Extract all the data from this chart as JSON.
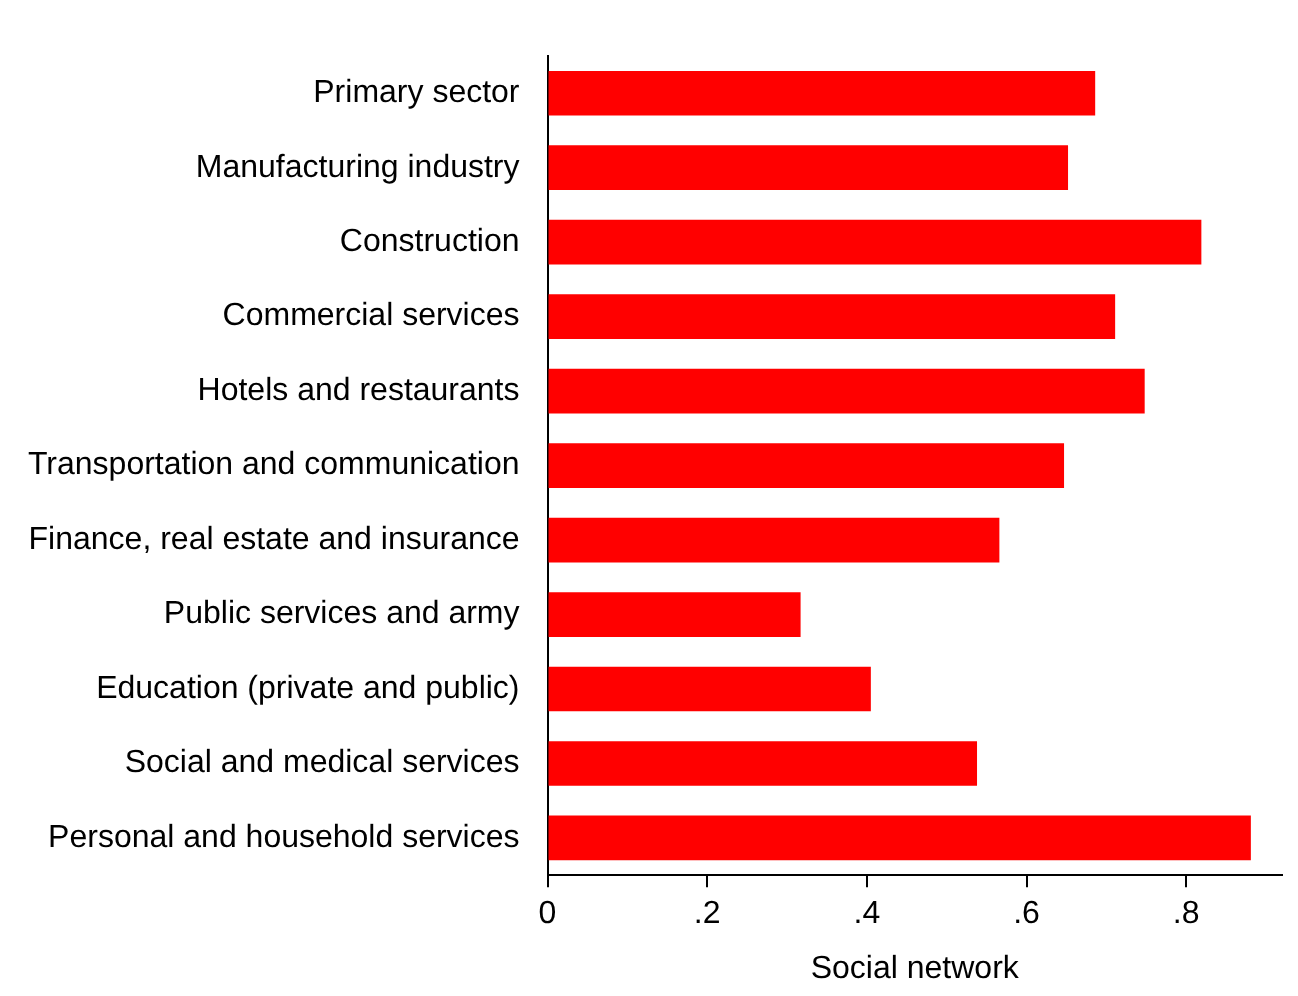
{
  "chart_data": {
    "type": "bar",
    "orientation": "horizontal",
    "xlabel": "Social network",
    "categories": [
      "Primary sector",
      "Manufacturing industry",
      "Construction",
      "Commercial services",
      "Hotels and restaurants",
      "Transportation and communication",
      "Finance, real estate and insurance",
      "Public services and army",
      "Education (private and public)",
      "Social and medical services",
      "Personal and household services"
    ],
    "values": [
      0.686,
      0.652,
      0.819,
      0.711,
      0.748,
      0.647,
      0.566,
      0.317,
      0.405,
      0.538,
      0.881
    ],
    "color": "#ff0000",
    "xlim": [
      0,
      0.92
    ],
    "xticks": [
      0,
      {
        "value": 0.2,
        "label": ".2"
      },
      {
        "value": 0.4,
        "label": ".4"
      },
      {
        "value": 0.6,
        "label": ".6"
      },
      {
        "value": 0.8,
        "label": ".8"
      }
    ],
    "grid": false,
    "legend": false
  }
}
